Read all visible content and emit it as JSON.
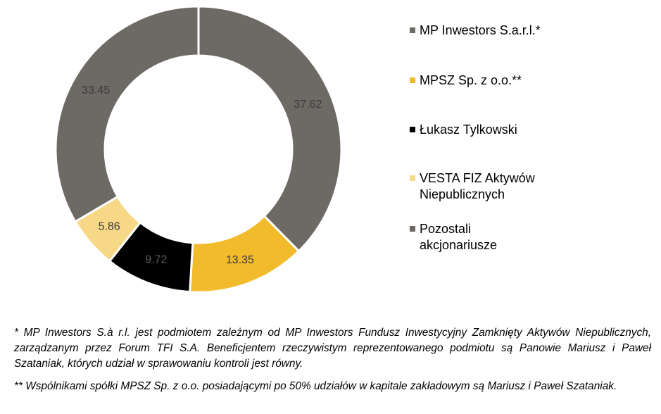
{
  "chart_data": {
    "type": "pie",
    "donut": true,
    "slices": [
      {
        "name": "MP Inwestors S.a.r.l.*",
        "value": 37.62,
        "label": "37.62",
        "color": "#6d6a65",
        "label_color": "#3a3a3a"
      },
      {
        "name": "MPSZ Sp. z o.o.**",
        "value": 13.35,
        "label": "13.35",
        "color": "#f2bb2c",
        "label_color": "#3a3a3a"
      },
      {
        "name": "Łukasz Tylkowski",
        "value": 9.72,
        "label": "9.72",
        "color": "#000000",
        "label_color": "#5b5b5b"
      },
      {
        "name": "VESTA FIZ Aktywów Niepublicznych",
        "value": 5.86,
        "label": "5.86",
        "color": "#f6d886",
        "label_color": "#3a3a3a"
      },
      {
        "name": "Pozostali akcjonariusze",
        "value": 33.45,
        "label": "33.45",
        "color": "#6d6a65",
        "label_color": "#3a3a3a"
      }
    ],
    "legend": {
      "position": "right",
      "entries": [
        {
          "lines": [
            "MP Inwestors S.a.r.l.*"
          ],
          "color": "#6d6a65"
        },
        {
          "lines": [
            "MPSZ Sp. z o.o.**"
          ],
          "color": "#f2bb2c"
        },
        {
          "lines": [
            "Łukasz Tylkowski"
          ],
          "color": "#000000"
        },
        {
          "lines": [
            "VESTA FIZ Aktywów",
            "Niepublicznych"
          ],
          "color": "#f6d886"
        },
        {
          "lines": [
            "Pozostali",
            "akcjonariusze"
          ],
          "color": "#6d6a65"
        }
      ]
    }
  },
  "footnotes": [
    "* MP Inwestors S.à r.l. jest podmiotem zależnym od MP Inwestors Fundusz Inwestycyjny Zamknięty Aktywów Niepublicznych, zarządzanym przez Forum TFI S.A. Beneficjentem rzeczywistym reprezentowanego podmiotu są Panowie Mariusz i Paweł Szataniak, których udział w sprawowaniu kontroli jest równy.",
    "** Wspólnikami spółki MPSZ Sp. z o.o. posiadającymi po 50% udziałów w kapitale zakładowym są Mariusz i Paweł Szataniak."
  ]
}
